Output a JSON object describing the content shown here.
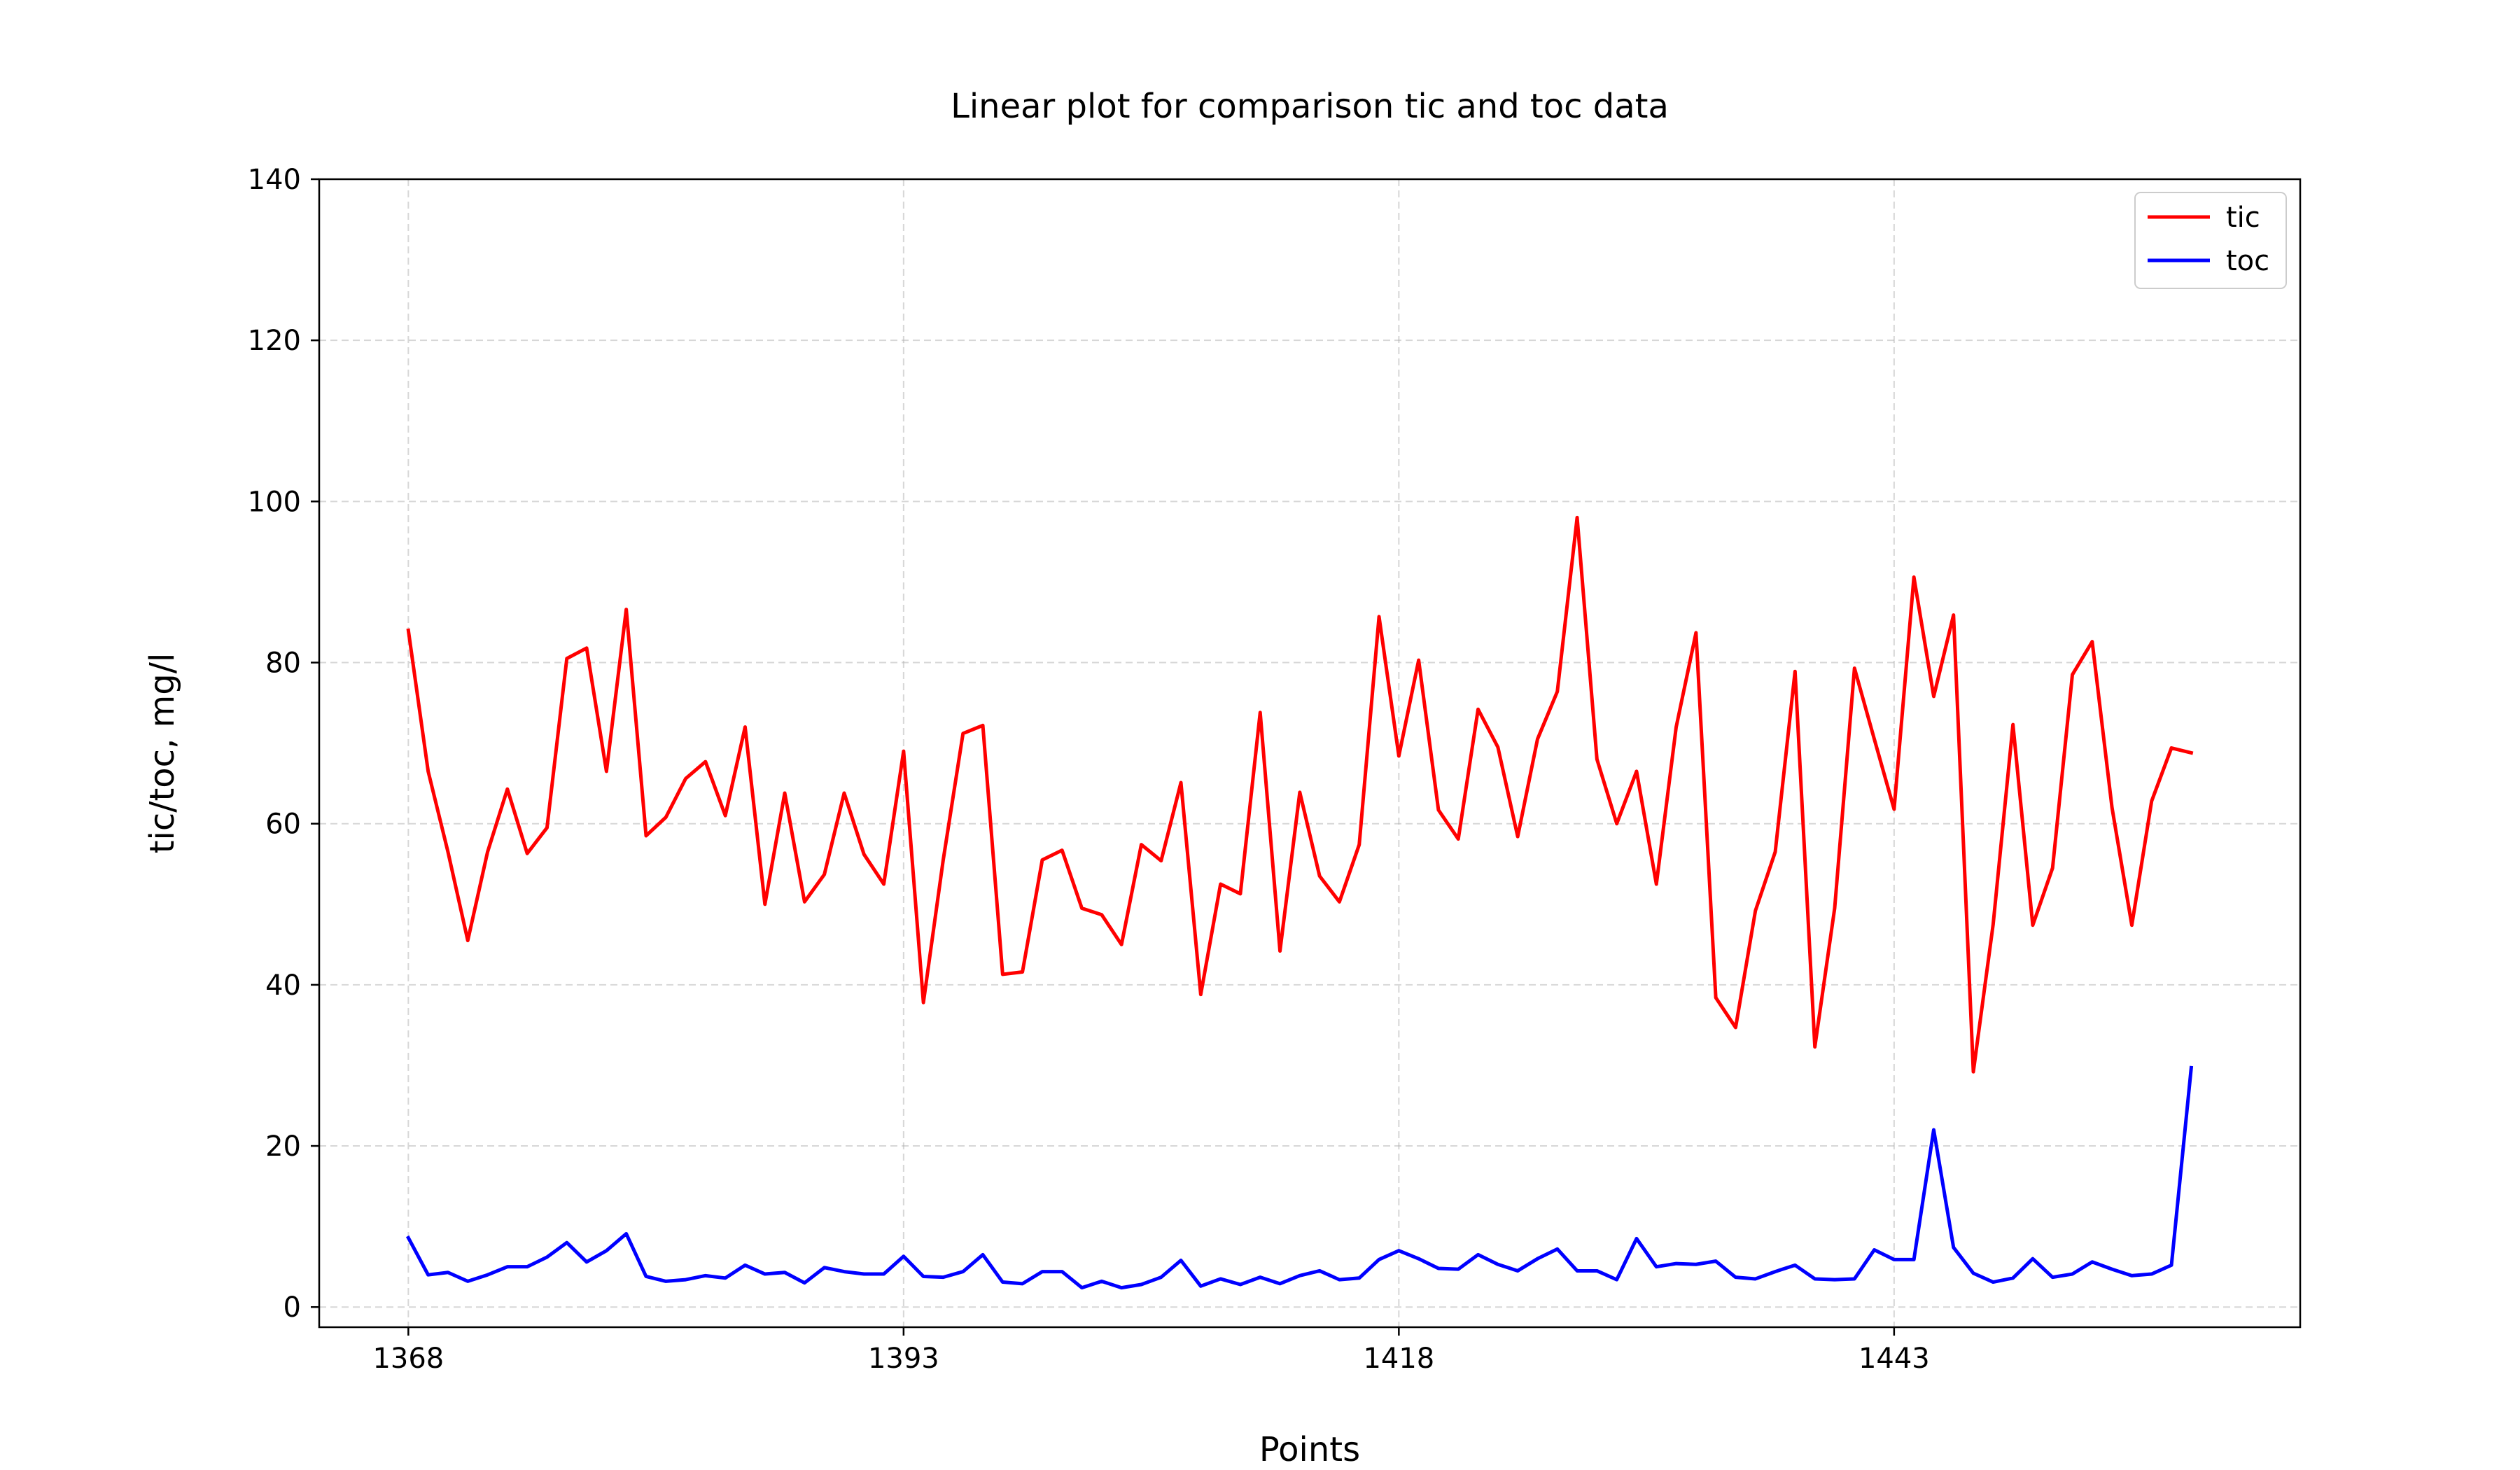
{
  "chart_data": {
    "type": "line",
    "title": "Linear plot for comparison tic and toc data",
    "xlabel": "Points",
    "ylabel": "tic/toc, mg/l",
    "xlim": [
      1363.5,
      1463.5
    ],
    "ylim": [
      -2.5,
      140
    ],
    "x_ticks": [
      1368,
      1393,
      1418,
      1443
    ],
    "y_ticks": [
      0,
      20,
      40,
      60,
      80,
      100,
      120,
      140
    ],
    "grid": true,
    "legend_position": "upper right",
    "x_start": 1368,
    "series": [
      {
        "name": "tic",
        "color": "#ff0000",
        "values": [
          84,
          66.5,
          56.5,
          45.5,
          56.5,
          64.3,
          56.3,
          59.5,
          80.5,
          81.8,
          66.5,
          86.6,
          58.5,
          60.8,
          65.6,
          67.7,
          61,
          72,
          50,
          63.8,
          50.3,
          53.7,
          63.8,
          56.2,
          52.5,
          69,
          37.8,
          55.5,
          71.2,
          72.2,
          41.3,
          41.6,
          55.5,
          56.7,
          49.5,
          48.7,
          45,
          57.4,
          55.4,
          65.1,
          38.8,
          52.5,
          51.3,
          73.8,
          44.2,
          63.9,
          53.5,
          50.3,
          57.4,
          85.7,
          68.4,
          80.3,
          61.7,
          58.1,
          74.2,
          69.5,
          58.4,
          70.5,
          76.4,
          98,
          68,
          60,
          66.5,
          52.5,
          72,
          83.7,
          38.4,
          34.7,
          49.2,
          56.5,
          78.9,
          32.3,
          49.5,
          79.3,
          70.5,
          61.8,
          90.6,
          75.8,
          85.9,
          29.2,
          47.5,
          72.3,
          47.4,
          54.5,
          78.5,
          82.6,
          62,
          47.4,
          62.8,
          69.4,
          68.8
        ],
        "display_values": [
          84,
          66.5,
          56.5,
          45.5,
          56.5,
          64.3,
          56.3,
          59.5,
          80.5,
          81.8,
          66.5,
          86.6,
          58.5,
          60.8,
          65.6,
          67.7,
          61,
          72,
          50,
          63.8,
          50.3,
          53.7,
          63.8,
          56.2,
          52.5,
          69,
          37.8,
          55.5,
          71.2,
          72.2,
          41.3,
          41.6,
          55.5,
          56.7,
          49.5,
          48.7,
          45,
          57.4,
          55.4,
          65.1,
          38.8,
          52.5,
          51.3,
          73.8,
          44.2,
          63.9,
          53.5,
          50.3,
          57.4,
          85.7,
          68.4,
          80.3,
          61.7,
          58.1,
          74.2,
          69.5,
          58.4,
          70.5,
          76.4,
          98,
          68,
          60,
          66.5,
          52.5,
          72,
          83.7,
          38.4,
          34.7,
          49.2,
          56.5,
          78.9,
          32.3,
          49.5,
          79.3,
          70.5,
          61.8,
          90.6,
          75.8,
          85.9,
          29.2,
          47.5,
          72.3,
          47.4,
          54.5,
          78.5,
          82.6,
          62,
          47.4,
          62.8,
          69.4,
          68.8
        ]
      },
      {
        "name": "toc",
        "color": "#0000ff",
        "values": [
          8.6,
          4,
          4.3,
          3.2,
          4,
          5,
          5,
          6.2,
          8,
          5.6,
          7,
          9.1,
          3.8,
          3.2,
          3.4,
          3.9,
          3.6,
          5.2,
          4.1,
          4.3,
          3,
          4.9,
          4.4,
          4.1,
          4.1,
          6.3,
          3.8,
          3.7,
          4.4,
          6.5,
          3.1,
          2.9,
          4.4,
          4.4,
          2.4,
          3.2,
          2.4,
          2.8,
          3.7,
          5.8,
          2.6,
          3.5,
          2.8,
          3.7,
          2.9,
          3.9,
          4.5,
          3.4,
          3.6,
          5.9,
          7,
          6,
          4.8,
          4.7,
          6.5,
          5.3,
          4.5,
          6,
          7.2,
          4.5,
          4.5,
          3.4,
          8.5,
          5,
          5.4,
          5.3,
          5.7,
          3.7,
          3.5,
          4.4,
          5.2,
          3.5,
          3.4,
          3.5,
          7.1,
          5.9,
          5.9,
          22,
          7.4,
          4.2,
          3.1,
          3.6,
          6,
          3.7,
          4.1,
          5.6,
          4.7,
          3.9,
          4.1,
          5.2,
          29.7
        ],
        "display_values": [
          8.6,
          4,
          4.3,
          3.2,
          4,
          5,
          5,
          6.2,
          8,
          5.6,
          7,
          9.1,
          3.8,
          3.2,
          3.4,
          3.9,
          3.6,
          5.2,
          4.1,
          4.3,
          3,
          4.9,
          4.4,
          4.1,
          4.1,
          6.3,
          3.8,
          3.7,
          4.4,
          6.5,
          3.1,
          2.9,
          4.4,
          4.4,
          2.4,
          3.2,
          2.4,
          2.8,
          3.7,
          5.8,
          2.6,
          3.5,
          2.8,
          3.7,
          2.9,
          3.9,
          4.5,
          3.4,
          3.6,
          5.9,
          7,
          6,
          4.8,
          4.7,
          6.5,
          5.3,
          4.5,
          6,
          7.2,
          4.5,
          4.5,
          3.4,
          8.5,
          5,
          5.4,
          5.3,
          5.7,
          3.7,
          3.5,
          4.4,
          5.2,
          3.5,
          3.4,
          3.5,
          7.1,
          5.9,
          5.9,
          22,
          7.4,
          4.2,
          3.1,
          3.6,
          6,
          3.7,
          4.1,
          5.6,
          4.7,
          3.9,
          4.1,
          5.2,
          29.7
        ]
      }
    ]
  }
}
